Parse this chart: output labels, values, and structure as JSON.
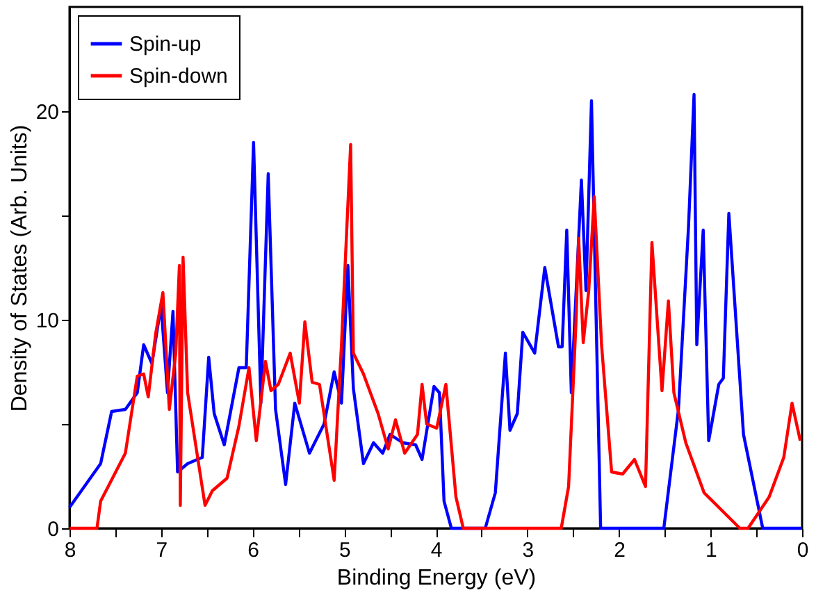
{
  "chart_data": {
    "type": "line",
    "xlabel": "Binding Energy (eV)",
    "ylabel": "Density of States (Arb. Units)",
    "xlim": [
      8,
      0
    ],
    "ylim": [
      0,
      25
    ],
    "xticks": [
      8,
      {
        "value": 7.5,
        "label": null
      },
      7,
      {
        "value": 6.5,
        "label": null
      },
      6,
      {
        "value": 5.5,
        "label": null
      },
      5,
      {
        "value": 4.5,
        "label": null
      },
      4,
      {
        "value": 3.5,
        "label": null
      },
      3,
      {
        "value": 2.5,
        "label": null
      },
      2,
      {
        "value": 1.5,
        "label": null
      },
      1,
      {
        "value": 0.5,
        "label": null
      },
      0
    ],
    "yticks": [
      0,
      {
        "value": 5,
        "label": null
      },
      10,
      {
        "value": 15,
        "label": null
      },
      20
    ],
    "grid": false,
    "legend": "top left",
    "marker": "none",
    "line_style": "solid",
    "series": [
      {
        "name": "Spin-up",
        "color": "#0000ff",
        "x": [
          8.0,
          7.66,
          7.54,
          7.39,
          7.26,
          7.19,
          7.1,
          7.0,
          6.93,
          6.87,
          6.82,
          6.71,
          6.55,
          6.48,
          6.42,
          6.31,
          6.15,
          6.07,
          5.99,
          5.91,
          5.83,
          5.75,
          5.64,
          5.54,
          5.38,
          5.22,
          5.11,
          5.03,
          4.96,
          4.9,
          4.79,
          4.68,
          4.58,
          4.5,
          4.36,
          4.22,
          4.15,
          4.02,
          3.96,
          3.91,
          3.83,
          3.46,
          3.35,
          3.24,
          3.19,
          3.11,
          3.05,
          2.92,
          2.81,
          2.66,
          2.62,
          2.57,
          2.52,
          2.41,
          2.36,
          2.3,
          2.2,
          1.51,
          1.35,
          1.24,
          1.18,
          1.15,
          1.08,
          1.02,
          0.91,
          0.86,
          0.8,
          0.64,
          0.43,
          0.0
        ],
        "values": [
          1.0,
          3.1,
          5.6,
          5.7,
          6.5,
          8.8,
          7.9,
          10.7,
          6.5,
          10.4,
          2.7,
          3.1,
          3.4,
          8.2,
          5.5,
          4.0,
          7.7,
          7.7,
          18.5,
          6.0,
          17.0,
          5.7,
          2.1,
          6.0,
          3.6,
          5.0,
          7.5,
          6.0,
          12.6,
          6.7,
          3.1,
          4.1,
          3.6,
          4.5,
          4.1,
          4.0,
          3.3,
          6.8,
          6.5,
          1.3,
          0,
          0,
          1.7,
          8.4,
          4.7,
          5.5,
          9.4,
          8.4,
          12.5,
          8.7,
          8.7,
          14.3,
          6.5,
          16.7,
          11.4,
          20.5,
          0,
          0,
          5.7,
          14.5,
          20.8,
          8.8,
          14.3,
          4.2,
          6.9,
          7.2,
          15.1,
          4.5,
          0,
          0
        ]
      },
      {
        "name": "Spin-down",
        "color": "#ff0000",
        "x": [
          8.0,
          7.7,
          7.66,
          7.39,
          7.26,
          7.19,
          7.14,
          7.06,
          6.98,
          6.91,
          6.84,
          6.8,
          6.79,
          6.76,
          6.71,
          6.52,
          6.44,
          6.28,
          6.15,
          6.04,
          5.96,
          5.86,
          5.8,
          5.72,
          5.59,
          5.49,
          5.43,
          5.35,
          5.27,
          5.11,
          5.03,
          4.93,
          4.9,
          4.79,
          4.63,
          4.52,
          4.44,
          4.34,
          4.2,
          4.15,
          4.1,
          3.99,
          3.89,
          3.78,
          3.7,
          2.63,
          2.55,
          2.47,
          2.44,
          2.39,
          2.33,
          2.27,
          2.19,
          2.08,
          1.96,
          1.83,
          1.71,
          1.64,
          1.53,
          1.46,
          1.4,
          1.27,
          1.07,
          0.68,
          0.59,
          0.36,
          0.2,
          0.11,
          0.02
        ],
        "values": [
          0,
          0,
          1.3,
          3.6,
          7.3,
          7.4,
          6.3,
          9.3,
          11.3,
          5.7,
          8.4,
          12.6,
          1.1,
          13.0,
          6.5,
          1.1,
          1.8,
          2.4,
          4.9,
          7.7,
          4.2,
          8.0,
          6.6,
          6.9,
          8.4,
          6.0,
          9.9,
          7.0,
          6.9,
          2.3,
          8.8,
          18.4,
          8.4,
          7.4,
          5.5,
          3.8,
          5.2,
          3.6,
          4.5,
          6.9,
          5.0,
          4.8,
          6.9,
          1.5,
          0,
          0,
          2.0,
          9.8,
          13.9,
          8.9,
          11.4,
          15.9,
          8.8,
          2.7,
          2.6,
          3.3,
          2.0,
          13.7,
          6.6,
          10.9,
          6.5,
          4.1,
          1.7,
          0,
          0,
          1.5,
          3.4,
          6.0,
          4.2
        ]
      }
    ]
  }
}
